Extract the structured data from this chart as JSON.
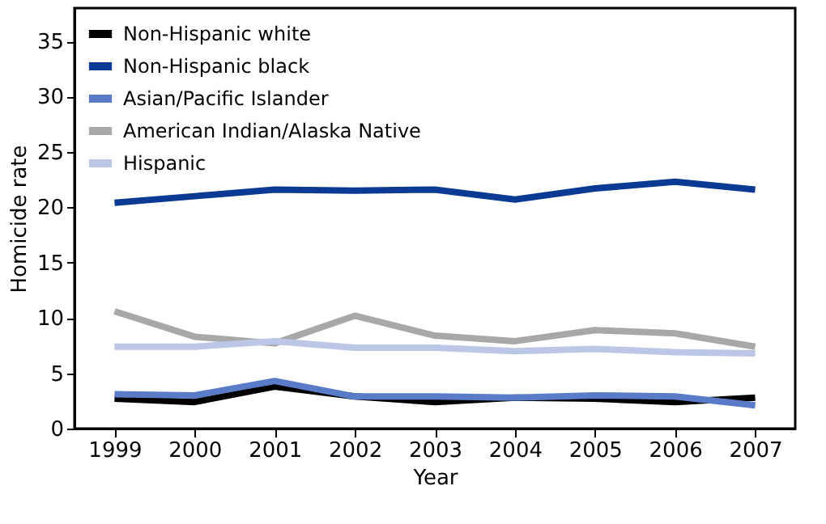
{
  "chart_data": {
    "type": "line",
    "xlabel": "Year",
    "ylabel": "Homicide rate",
    "x": [
      1999,
      2000,
      2001,
      2002,
      2003,
      2004,
      2005,
      2006,
      2007
    ],
    "xlim": [
      1998.5,
      2007.5
    ],
    "xticks": [
      1999,
      2000,
      2001,
      2002,
      2003,
      2004,
      2005,
      2006,
      2007
    ],
    "ylim": [
      0,
      38
    ],
    "yticks": [
      0,
      5,
      10,
      15,
      20,
      25,
      30,
      35
    ],
    "grid": false,
    "legend": "top left",
    "marker": "none",
    "line_style": "solid",
    "series": [
      {
        "name": "Non-Hispanic white",
        "color": "#000000",
        "values": [
          2.7,
          2.4,
          3.8,
          2.9,
          2.4,
          2.8,
          2.7,
          2.4,
          2.8
        ]
      },
      {
        "name": "Non-Hispanic black",
        "color": "#0a3a94",
        "values": [
          20.4,
          21.0,
          21.6,
          21.5,
          21.6,
          20.7,
          21.7,
          22.3,
          21.6
        ]
      },
      {
        "name": "Asian/Pacific Islander",
        "color": "#5a7cc8",
        "values": [
          3.1,
          3.0,
          4.3,
          2.9,
          2.9,
          2.8,
          3.0,
          2.9,
          2.1
        ]
      },
      {
        "name": "American Indian/Alaska Native",
        "color": "#a8a8a8",
        "values": [
          10.6,
          8.3,
          7.7,
          10.2,
          8.4,
          7.9,
          8.9,
          8.6,
          7.4
        ]
      },
      {
        "name": "Hispanic",
        "color": "#bcc6e6",
        "values": [
          7.4,
          7.4,
          7.9,
          7.3,
          7.3,
          7.0,
          7.2,
          6.9,
          6.8
        ]
      }
    ]
  }
}
